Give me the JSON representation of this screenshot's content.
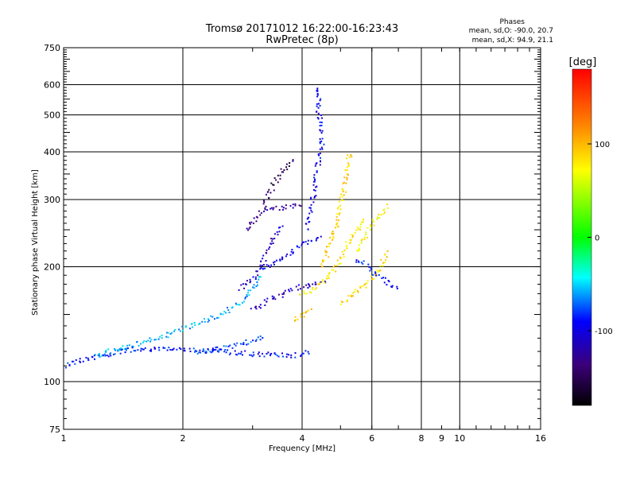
{
  "chart_data": {
    "type": "scatter",
    "title": "Tromsø 20171012 16:22:00-16:23:43",
    "subtitle": "RwPretec (8p)",
    "xlabel": "Frequency [MHz]",
    "ylabel": "Stationary phase Virtual Height [km]",
    "x_scale": "log",
    "y_scale": "log",
    "xlim": [
      1,
      16
    ],
    "ylim": [
      75,
      750
    ],
    "x_ticks": [
      1,
      2,
      4,
      6,
      8,
      9,
      10,
      16
    ],
    "x_tick_labels": [
      "1",
      "2",
      "4",
      "6",
      "8",
      "9",
      "10",
      "16"
    ],
    "x_gridlines": [
      2,
      4,
      6,
      8,
      10
    ],
    "y_ticks": [
      75,
      100,
      200,
      300,
      400,
      500,
      600,
      750
    ],
    "y_tick_labels": [
      "75",
      "100",
      "200",
      "300",
      "400",
      "500",
      "600",
      "750"
    ],
    "y_gridlines": [
      100,
      200,
      300,
      400,
      500,
      600
    ],
    "grid": true,
    "stats": {
      "heading": "Phases",
      "line_o": "mean, sd,O: -90.0, 20.7",
      "line_x": "mean, sd,X:  94.9, 21.1"
    },
    "colorbar": {
      "label": "[deg]",
      "range": [
        -180,
        180
      ],
      "ticks": [
        100,
        0,
        -100
      ],
      "tick_labels": [
        "100",
        "0",
        "-100"
      ],
      "colormap": "rainbow"
    },
    "traces": [
      {
        "phase": -95,
        "points": [
          [
            1.0,
            110
          ],
          [
            1.05,
            112
          ],
          [
            1.1,
            114
          ],
          [
            1.2,
            116
          ],
          [
            1.3,
            118
          ],
          [
            1.4,
            120
          ],
          [
            1.5,
            121
          ],
          [
            1.6,
            121
          ],
          [
            1.8,
            122
          ],
          [
            2.0,
            122
          ],
          [
            2.2,
            121
          ],
          [
            2.5,
            120
          ],
          [
            2.8,
            119
          ],
          [
            3.0,
            118
          ],
          [
            3.2,
            118
          ],
          [
            3.5,
            117
          ],
          [
            3.8,
            117
          ],
          [
            4.0,
            118
          ],
          [
            4.2,
            120
          ]
        ]
      },
      {
        "phase": -60,
        "points": [
          [
            1.2,
            117
          ],
          [
            1.4,
            122
          ],
          [
            1.6,
            127
          ],
          [
            1.8,
            132
          ],
          [
            2.0,
            138
          ],
          [
            2.2,
            143
          ],
          [
            2.5,
            150
          ],
          [
            2.7,
            158
          ],
          [
            2.9,
            166
          ],
          [
            3.0,
            175
          ],
          [
            3.1,
            183
          ],
          [
            3.2,
            190
          ]
        ]
      },
      {
        "phase": -85,
        "points": [
          [
            2.2,
            119
          ],
          [
            2.5,
            122
          ],
          [
            2.8,
            125
          ],
          [
            3.0,
            128
          ],
          [
            3.2,
            130
          ]
        ]
      },
      {
        "phase": -120,
        "points": [
          [
            2.8,
            175
          ],
          [
            3.0,
            185
          ],
          [
            3.1,
            195
          ],
          [
            3.2,
            210
          ],
          [
            3.3,
            225
          ],
          [
            3.4,
            240
          ],
          [
            3.5,
            250
          ],
          [
            3.6,
            255
          ]
        ]
      },
      {
        "phase": -135,
        "points": [
          [
            2.9,
            250
          ],
          [
            3.0,
            262
          ],
          [
            3.1,
            273
          ],
          [
            3.2,
            280
          ],
          [
            3.4,
            285
          ],
          [
            3.6,
            286
          ],
          [
            3.8,
            288
          ],
          [
            4.0,
            290
          ]
        ]
      },
      {
        "phase": -150,
        "points": [
          [
            3.2,
            290
          ],
          [
            3.3,
            310
          ],
          [
            3.4,
            330
          ],
          [
            3.5,
            345
          ],
          [
            3.6,
            360
          ],
          [
            3.7,
            372
          ],
          [
            3.8,
            385
          ]
        ]
      },
      {
        "phase": -120,
        "points": [
          [
            3.0,
            155
          ],
          [
            3.2,
            160
          ],
          [
            3.4,
            165
          ],
          [
            3.6,
            170
          ],
          [
            3.8,
            175
          ],
          [
            4.0,
            178
          ],
          [
            4.3,
            180
          ],
          [
            4.6,
            182
          ]
        ]
      },
      {
        "phase": -110,
        "points": [
          [
            3.2,
            195
          ],
          [
            3.4,
            205
          ],
          [
            3.6,
            213
          ],
          [
            3.8,
            220
          ],
          [
            4.0,
            228
          ],
          [
            4.2,
            235
          ],
          [
            4.5,
            240
          ]
        ]
      },
      {
        "phase": -105,
        "points": [
          [
            4.1,
            250
          ],
          [
            4.2,
            280
          ],
          [
            4.3,
            320
          ],
          [
            4.4,
            380
          ],
          [
            4.5,
            430
          ],
          [
            4.4,
            520
          ],
          [
            4.4,
            600
          ]
        ]
      },
      {
        "phase": 90,
        "points": [
          [
            4.0,
            170
          ],
          [
            4.3,
            175
          ],
          [
            4.6,
            185
          ],
          [
            4.8,
            195
          ],
          [
            5.0,
            210
          ],
          [
            5.2,
            230
          ],
          [
            5.5,
            250
          ],
          [
            5.8,
            270
          ]
        ]
      },
      {
        "phase": 100,
        "points": [
          [
            4.5,
            200
          ],
          [
            4.7,
            230
          ],
          [
            4.9,
            260
          ],
          [
            5.0,
            290
          ],
          [
            5.1,
            320
          ],
          [
            5.2,
            360
          ],
          [
            5.3,
            400
          ]
        ]
      },
      {
        "phase": 95,
        "points": [
          [
            5.0,
            160
          ],
          [
            5.3,
            168
          ],
          [
            5.6,
            175
          ],
          [
            6.0,
            185
          ],
          [
            6.3,
            200
          ],
          [
            6.6,
            220
          ]
        ]
      },
      {
        "phase": 85,
        "points": [
          [
            5.5,
            220
          ],
          [
            5.8,
            240
          ],
          [
            6.0,
            260
          ],
          [
            6.3,
            275
          ],
          [
            6.6,
            290
          ]
        ]
      },
      {
        "phase": -100,
        "points": [
          [
            5.5,
            210
          ],
          [
            5.8,
            200
          ],
          [
            6.2,
            190
          ],
          [
            6.6,
            182
          ],
          [
            7.0,
            175
          ]
        ]
      },
      {
        "phase": 105,
        "points": [
          [
            3.8,
            145
          ],
          [
            4.0,
            150
          ],
          [
            4.2,
            155
          ]
        ]
      }
    ]
  }
}
